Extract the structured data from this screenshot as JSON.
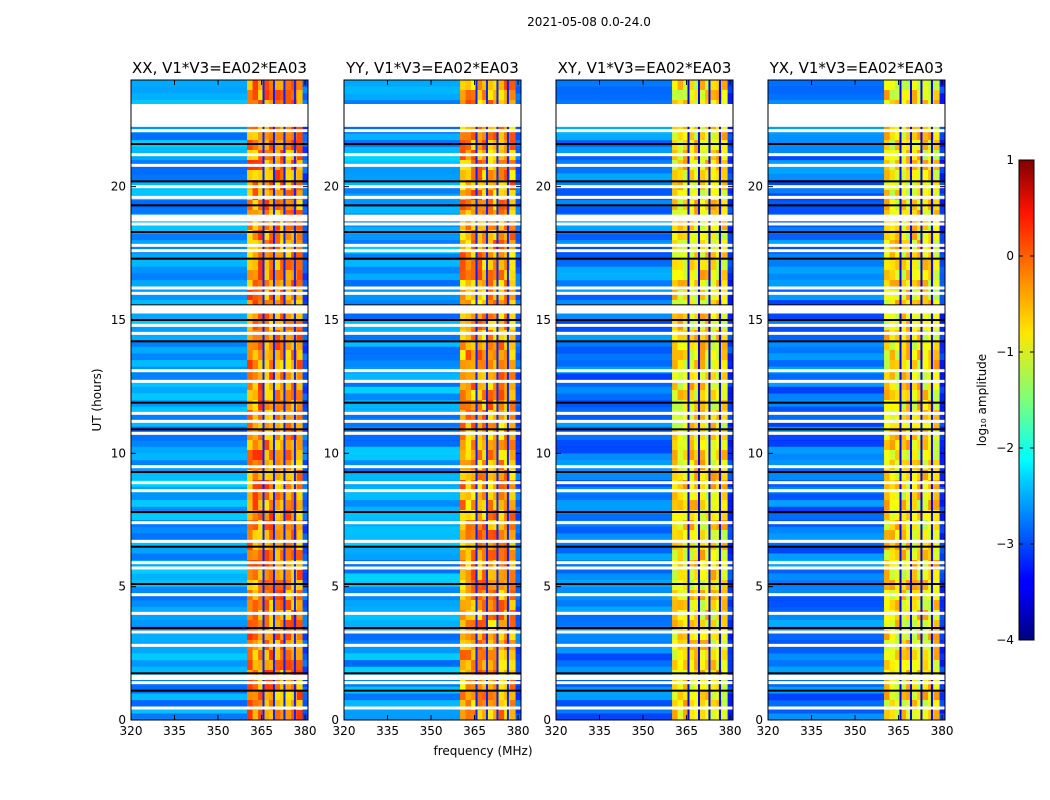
{
  "figure": {
    "suptitle": "2021-05-08 0.0-24.0",
    "xlabel": "frequency (MHz)",
    "ylabel": "UT (hours)"
  },
  "colorbar": {
    "label": "log₁₀ amplitude",
    "ticks": [
      1,
      0,
      -1,
      -2,
      -3,
      -4
    ],
    "tick_labels": [
      "1",
      "0",
      "−1",
      "−2",
      "−3",
      "−4"
    ],
    "range": [
      -4,
      1
    ],
    "colormap": "jet"
  },
  "chart_data": [
    {
      "type": "heatmap",
      "title": "XX, V1*V3=EA02*EA03",
      "xlim": [
        320,
        381
      ],
      "ylim": [
        0,
        24
      ],
      "x_ticks": [
        320,
        335,
        350,
        365,
        380
      ],
      "y_ticks": [
        0,
        5,
        10,
        15,
        20
      ],
      "bright_band_mhz": [
        360,
        379
      ],
      "band_level_log10": -0.3,
      "background_level_log10": -2.6
    },
    {
      "type": "heatmap",
      "title": "YY, V1*V3=EA02*EA03",
      "xlim": [
        320,
        381
      ],
      "ylim": [
        0,
        24
      ],
      "x_ticks": [
        320,
        335,
        350,
        365,
        380
      ],
      "y_ticks": [
        0,
        5,
        10,
        15,
        20
      ],
      "bright_band_mhz": [
        360,
        379
      ],
      "band_level_log10": -0.4,
      "background_level_log10": -2.6
    },
    {
      "type": "heatmap",
      "title": "XY, V1*V3=EA02*EA03",
      "xlim": [
        320,
        381
      ],
      "ylim": [
        0,
        24
      ],
      "x_ticks": [
        320,
        335,
        350,
        365,
        380
      ],
      "y_ticks": [
        0,
        5,
        10,
        15,
        20
      ],
      "bright_band_mhz": [
        360,
        379
      ],
      "band_level_log10": -0.8,
      "background_level_log10": -2.8
    },
    {
      "type": "heatmap",
      "title": "YX, V1*V3=EA02*EA03",
      "xlim": [
        320,
        381
      ],
      "ylim": [
        0,
        24
      ],
      "x_ticks": [
        320,
        335,
        350,
        365,
        380
      ],
      "y_ticks": [
        0,
        5,
        10,
        15,
        20
      ],
      "bright_band_mhz": [
        360,
        379
      ],
      "band_level_log10": -0.8,
      "background_level_log10": -2.8
    }
  ],
  "flagged_ut_hours": [
    0.45,
    1.1,
    1.4,
    1.6,
    1.75,
    2.8,
    3.3,
    3.45,
    4.0,
    4.7,
    5.1,
    5.7,
    5.9,
    6.5,
    6.7,
    7.4,
    7.8,
    8.6,
    8.9,
    9.3,
    9.5,
    10.75,
    10.9,
    11.2,
    11.5,
    11.9,
    12.7,
    13.1,
    14.2,
    14.5,
    14.8,
    15.0,
    15.3,
    15.5,
    15.55,
    16.0,
    16.2,
    17.3,
    17.6,
    17.8,
    18.3,
    18.6,
    18.8,
    19.3,
    19.6,
    20.0,
    20.2,
    20.8,
    21.2,
    21.6,
    22.1,
    22.3,
    22.5,
    22.7,
    22.9,
    23.05
  ]
}
